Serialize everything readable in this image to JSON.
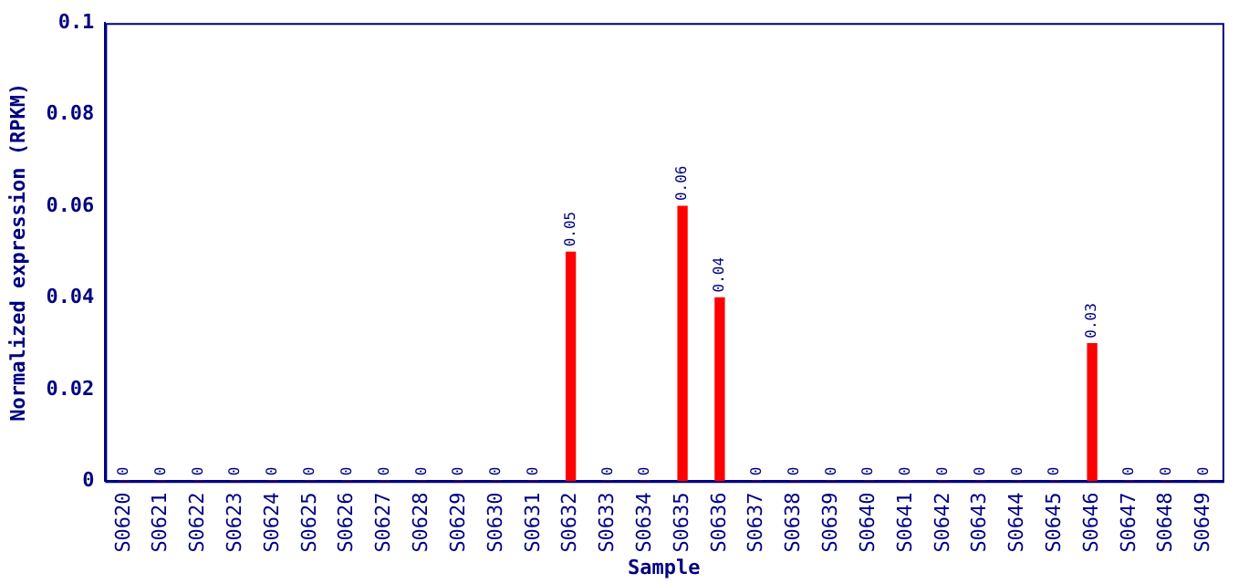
{
  "chart_data": {
    "type": "bar",
    "xlabel": "Sample",
    "ylabel": "Normalized expression (RPKM)",
    "categories": [
      "S0620",
      "S0621",
      "S0622",
      "S0623",
      "S0624",
      "S0625",
      "S0626",
      "S0627",
      "S0628",
      "S0629",
      "S0630",
      "S0631",
      "S0632",
      "S0633",
      "S0634",
      "S0635",
      "S0636",
      "S0637",
      "S0638",
      "S0639",
      "S0640",
      "S0641",
      "S0642",
      "S0643",
      "S0644",
      "S0645",
      "S0646",
      "S0647",
      "S0648",
      "S0649"
    ],
    "values": [
      0,
      0,
      0,
      0,
      0,
      0,
      0,
      0,
      0,
      0,
      0,
      0,
      0.05,
      0,
      0,
      0.06,
      0.04,
      0,
      0,
      0,
      0,
      0,
      0,
      0,
      0,
      0,
      0.03,
      0,
      0,
      0
    ],
    "color": "#ff0000",
    "ylim": [
      0,
      0.1
    ],
    "yticks": [
      0,
      0.02,
      0.04,
      0.06,
      0.08,
      0.1
    ],
    "grid": false,
    "data_labels": true
  }
}
